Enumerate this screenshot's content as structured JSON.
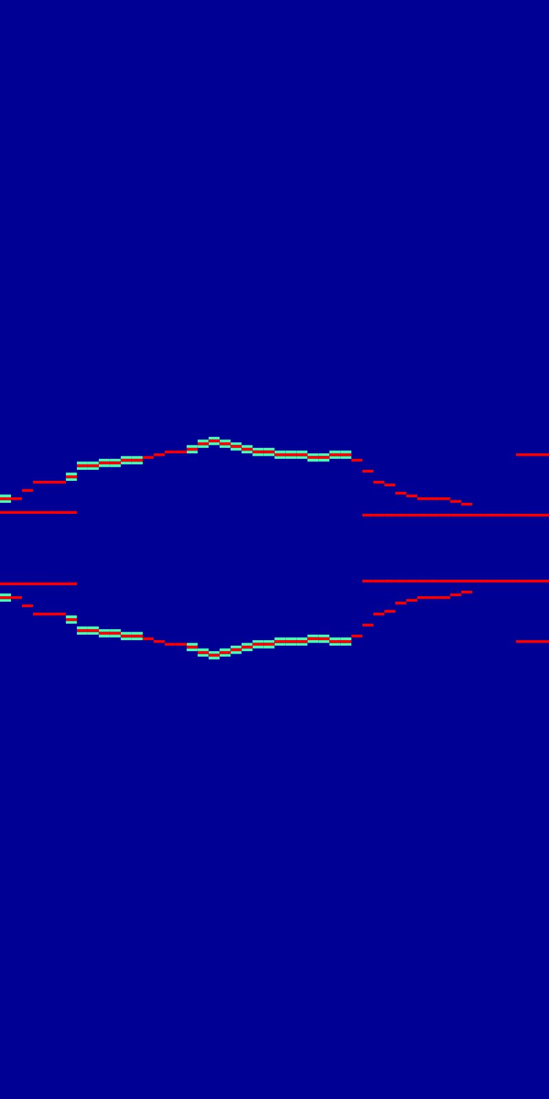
{
  "chart_data": {
    "type": "heatmap",
    "xlim": [
      0,
      200
    ],
    "ylim": [
      0,
      400
    ],
    "tick_labels": false,
    "color": "jet",
    "zlim": [
      0,
      1
    ],
    "fill_value": 0.02,
    "cell_size": [
      4,
      1
    ],
    "cells": [
      [
        0,
        218,
        0.88
      ],
      [
        4,
        218,
        0.88
      ],
      [
        8,
        221,
        0.88
      ],
      [
        12,
        224,
        0.88
      ],
      [
        16,
        224,
        0.88
      ],
      [
        20,
        224,
        0.88
      ],
      [
        24,
        226,
        0.88
      ],
      [
        28,
        230,
        0.88
      ],
      [
        32,
        230,
        0.88
      ],
      [
        36,
        231,
        0.88
      ],
      [
        40,
        231,
        0.88
      ],
      [
        44,
        232,
        0.88
      ],
      [
        48,
        232,
        0.88
      ],
      [
        52,
        233,
        0.88
      ],
      [
        56,
        234,
        0.88
      ],
      [
        60,
        235,
        0.88
      ],
      [
        64,
        235,
        0.88
      ],
      [
        68,
        236,
        0.88
      ],
      [
        72,
        238,
        0.88
      ],
      [
        76,
        239,
        0.88
      ],
      [
        80,
        238,
        0.88
      ],
      [
        84,
        237,
        0.88
      ],
      [
        88,
        236,
        0.88
      ],
      [
        92,
        235,
        0.88
      ],
      [
        96,
        235,
        0.88
      ],
      [
        100,
        234,
        0.88
      ],
      [
        104,
        234,
        0.88
      ],
      [
        108,
        234,
        0.88
      ],
      [
        112,
        233,
        0.88
      ],
      [
        116,
        233,
        0.88
      ],
      [
        120,
        234,
        0.88
      ],
      [
        124,
        234,
        0.88
      ],
      [
        128,
        232,
        0.88
      ],
      [
        132,
        228,
        0.88
      ],
      [
        136,
        224,
        0.88
      ],
      [
        140,
        223,
        0.88
      ],
      [
        144,
        220,
        0.88
      ],
      [
        148,
        219,
        0.88
      ],
      [
        152,
        218,
        0.88
      ],
      [
        156,
        218,
        0.88
      ],
      [
        160,
        218,
        0.88
      ],
      [
        164,
        217,
        0.88
      ],
      [
        168,
        216,
        0.88
      ],
      [
        0,
        182,
        0.88
      ],
      [
        4,
        182,
        0.88
      ],
      [
        8,
        179,
        0.88
      ],
      [
        12,
        176,
        0.88
      ],
      [
        16,
        176,
        0.88
      ],
      [
        20,
        176,
        0.88
      ],
      [
        24,
        174,
        0.88
      ],
      [
        28,
        170,
        0.88
      ],
      [
        32,
        170,
        0.88
      ],
      [
        36,
        169,
        0.88
      ],
      [
        40,
        169,
        0.88
      ],
      [
        44,
        168,
        0.88
      ],
      [
        48,
        168,
        0.88
      ],
      [
        52,
        167,
        0.88
      ],
      [
        56,
        166,
        0.88
      ],
      [
        60,
        165,
        0.88
      ],
      [
        64,
        165,
        0.88
      ],
      [
        68,
        164,
        0.88
      ],
      [
        72,
        162,
        0.88
      ],
      [
        76,
        161,
        0.88
      ],
      [
        80,
        162,
        0.88
      ],
      [
        84,
        163,
        0.88
      ],
      [
        88,
        164,
        0.88
      ],
      [
        92,
        165,
        0.88
      ],
      [
        96,
        165,
        0.88
      ],
      [
        100,
        166,
        0.88
      ],
      [
        104,
        166,
        0.88
      ],
      [
        108,
        166,
        0.88
      ],
      [
        112,
        167,
        0.88
      ],
      [
        116,
        167,
        0.88
      ],
      [
        120,
        166,
        0.88
      ],
      [
        124,
        166,
        0.88
      ],
      [
        128,
        168,
        0.88
      ],
      [
        132,
        172,
        0.88
      ],
      [
        136,
        176,
        0.88
      ],
      [
        140,
        177,
        0.88
      ],
      [
        144,
        180,
        0.88
      ],
      [
        148,
        181,
        0.88
      ],
      [
        152,
        182,
        0.88
      ],
      [
        156,
        182,
        0.88
      ],
      [
        160,
        182,
        0.88
      ],
      [
        164,
        183,
        0.88
      ],
      [
        168,
        184,
        0.88
      ],
      [
        0,
        217,
        0.45
      ],
      [
        0,
        219,
        0.45
      ],
      [
        24,
        225,
        0.45
      ],
      [
        24,
        227,
        0.45
      ],
      [
        28,
        229,
        0.45
      ],
      [
        28,
        231,
        0.45
      ],
      [
        32,
        229,
        0.45
      ],
      [
        32,
        231,
        0.45
      ],
      [
        36,
        230,
        0.45
      ],
      [
        36,
        232,
        0.45
      ],
      [
        40,
        230,
        0.45
      ],
      [
        40,
        232,
        0.45
      ],
      [
        44,
        231,
        0.45
      ],
      [
        44,
        233,
        0.45
      ],
      [
        48,
        231,
        0.45
      ],
      [
        48,
        233,
        0.45
      ],
      [
        68,
        235,
        0.45
      ],
      [
        68,
        237,
        0.45
      ],
      [
        72,
        237,
        0.45
      ],
      [
        72,
        239,
        0.45
      ],
      [
        76,
        238,
        0.45
      ],
      [
        76,
        240,
        0.45
      ],
      [
        80,
        237,
        0.45
      ],
      [
        80,
        239,
        0.45
      ],
      [
        84,
        236,
        0.45
      ],
      [
        84,
        238,
        0.45
      ],
      [
        88,
        235,
        0.45
      ],
      [
        88,
        237,
        0.45
      ],
      [
        92,
        234,
        0.45
      ],
      [
        92,
        236,
        0.45
      ],
      [
        96,
        234,
        0.45
      ],
      [
        96,
        236,
        0.45
      ],
      [
        100,
        233,
        0.45
      ],
      [
        100,
        235,
        0.45
      ],
      [
        104,
        233,
        0.45
      ],
      [
        104,
        235,
        0.45
      ],
      [
        108,
        233,
        0.45
      ],
      [
        108,
        235,
        0.45
      ],
      [
        112,
        232,
        0.45
      ],
      [
        112,
        234,
        0.45
      ],
      [
        116,
        232,
        0.45
      ],
      [
        116,
        234,
        0.45
      ],
      [
        120,
        233,
        0.45
      ],
      [
        120,
        235,
        0.45
      ],
      [
        124,
        233,
        0.45
      ],
      [
        124,
        235,
        0.45
      ],
      [
        0,
        183,
        0.45
      ],
      [
        0,
        181,
        0.45
      ],
      [
        24,
        175,
        0.45
      ],
      [
        24,
        173,
        0.45
      ],
      [
        28,
        171,
        0.45
      ],
      [
        28,
        169,
        0.45
      ],
      [
        32,
        171,
        0.45
      ],
      [
        32,
        169,
        0.45
      ],
      [
        36,
        170,
        0.45
      ],
      [
        36,
        168,
        0.45
      ],
      [
        40,
        170,
        0.45
      ],
      [
        40,
        168,
        0.45
      ],
      [
        44,
        169,
        0.45
      ],
      [
        44,
        167,
        0.45
      ],
      [
        48,
        169,
        0.45
      ],
      [
        48,
        167,
        0.45
      ],
      [
        68,
        165,
        0.45
      ],
      [
        68,
        163,
        0.45
      ],
      [
        72,
        163,
        0.45
      ],
      [
        72,
        161,
        0.45
      ],
      [
        76,
        162,
        0.45
      ],
      [
        76,
        160,
        0.45
      ],
      [
        80,
        163,
        0.45
      ],
      [
        80,
        161,
        0.45
      ],
      [
        84,
        164,
        0.45
      ],
      [
        84,
        162,
        0.45
      ],
      [
        88,
        165,
        0.45
      ],
      [
        88,
        163,
        0.45
      ],
      [
        92,
        166,
        0.45
      ],
      [
        92,
        164,
        0.45
      ],
      [
        96,
        166,
        0.45
      ],
      [
        96,
        164,
        0.45
      ],
      [
        100,
        167,
        0.45
      ],
      [
        100,
        165,
        0.45
      ],
      [
        104,
        167,
        0.45
      ],
      [
        104,
        165,
        0.45
      ],
      [
        108,
        167,
        0.45
      ],
      [
        108,
        165,
        0.45
      ],
      [
        112,
        168,
        0.45
      ],
      [
        112,
        166,
        0.45
      ],
      [
        116,
        168,
        0.45
      ],
      [
        116,
        166,
        0.45
      ],
      [
        120,
        167,
        0.45
      ],
      [
        120,
        165,
        0.45
      ],
      [
        124,
        167,
        0.45
      ],
      [
        124,
        165,
        0.45
      ],
      [
        0,
        213,
        0.88
      ],
      [
        4,
        213,
        0.88
      ],
      [
        8,
        213,
        0.88
      ],
      [
        12,
        213,
        0.88
      ],
      [
        16,
        213,
        0.88
      ],
      [
        20,
        213,
        0.88
      ],
      [
        24,
        213,
        0.88
      ],
      [
        0,
        187,
        0.88
      ],
      [
        4,
        187,
        0.88
      ],
      [
        8,
        187,
        0.88
      ],
      [
        12,
        187,
        0.88
      ],
      [
        16,
        187,
        0.88
      ],
      [
        20,
        187,
        0.88
      ],
      [
        24,
        187,
        0.88
      ],
      [
        132,
        212,
        0.88
      ],
      [
        136,
        212,
        0.88
      ],
      [
        140,
        212,
        0.88
      ],
      [
        144,
        212,
        0.88
      ],
      [
        148,
        212,
        0.88
      ],
      [
        152,
        212,
        0.88
      ],
      [
        156,
        212,
        0.88
      ],
      [
        160,
        212,
        0.88
      ],
      [
        164,
        212,
        0.88
      ],
      [
        168,
        212,
        0.88
      ],
      [
        172,
        212,
        0.88
      ],
      [
        176,
        212,
        0.88
      ],
      [
        180,
        212,
        0.88
      ],
      [
        184,
        212,
        0.88
      ],
      [
        188,
        212,
        0.88
      ],
      [
        192,
        212,
        0.88
      ],
      [
        196,
        212,
        0.88
      ],
      [
        132,
        188,
        0.88
      ],
      [
        136,
        188,
        0.88
      ],
      [
        140,
        188,
        0.88
      ],
      [
        144,
        188,
        0.88
      ],
      [
        148,
        188,
        0.88
      ],
      [
        152,
        188,
        0.88
      ],
      [
        156,
        188,
        0.88
      ],
      [
        160,
        188,
        0.88
      ],
      [
        164,
        188,
        0.88
      ],
      [
        168,
        188,
        0.88
      ],
      [
        172,
        188,
        0.88
      ],
      [
        176,
        188,
        0.88
      ],
      [
        180,
        188,
        0.88
      ],
      [
        184,
        188,
        0.88
      ],
      [
        188,
        188,
        0.88
      ],
      [
        192,
        188,
        0.88
      ],
      [
        196,
        188,
        0.88
      ],
      [
        188,
        234,
        0.88
      ],
      [
        192,
        234,
        0.88
      ],
      [
        196,
        234,
        0.88
      ],
      [
        188,
        166,
        0.88
      ],
      [
        192,
        166,
        0.88
      ],
      [
        196,
        166,
        0.88
      ]
    ]
  }
}
